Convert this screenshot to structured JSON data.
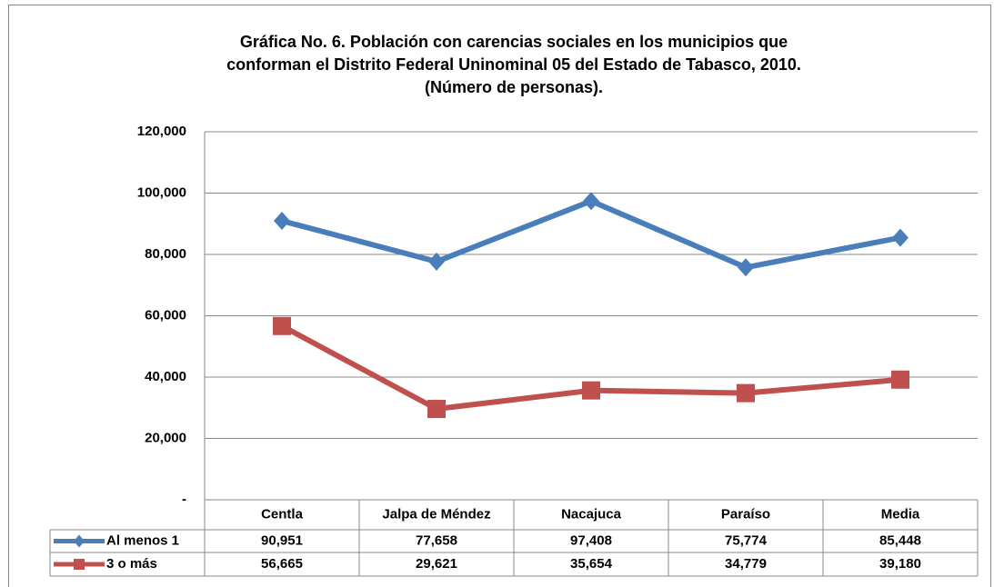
{
  "chart_data": {
    "type": "line",
    "title": [
      "Gráfica No. 6. Población con carencias sociales en los municipios que",
      "conforman el Distrito Federal Uninominal 05 del Estado de Tabasco, 2010.",
      "(Número de personas)."
    ],
    "categories": [
      "Centla",
      "Jalpa de Méndez",
      "Nacajuca",
      "Paraíso",
      "Media"
    ],
    "series": [
      {
        "name": "Al menos 1",
        "color": "#4a7ebb",
        "marker": "diamond",
        "values": [
          90951,
          77658,
          97408,
          75774,
          85448
        ],
        "value_labels": [
          "90,951",
          "77,658",
          "97,408",
          "75,774",
          "85,448"
        ]
      },
      {
        "name": "3 o más",
        "color": "#c0504d",
        "marker": "square",
        "values": [
          56665,
          29621,
          35654,
          34779,
          39180
        ],
        "value_labels": [
          "56,665",
          "29,621",
          "35,654",
          "34,779",
          "39,180"
        ]
      }
    ],
    "ylim": [
      0,
      120000
    ],
    "yticks": [
      {
        "value": 0,
        "label": "-"
      },
      {
        "value": 20000,
        "label": "20,000"
      },
      {
        "value": 40000,
        "label": "40,000"
      },
      {
        "value": 60000,
        "label": "60,000"
      },
      {
        "value": 80000,
        "label": "80,000"
      },
      {
        "value": 100000,
        "label": "100,000"
      },
      {
        "value": 120000,
        "label": "120,000"
      }
    ],
    "grid": true
  }
}
